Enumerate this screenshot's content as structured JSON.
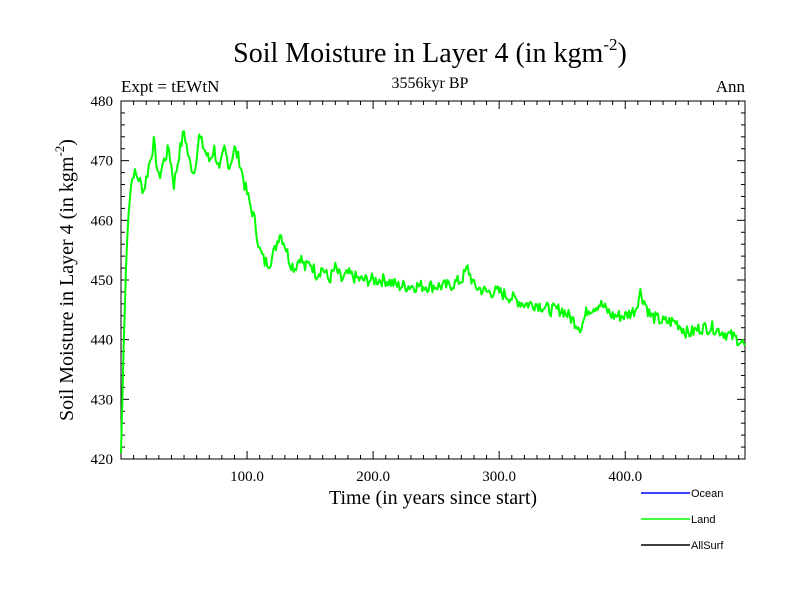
{
  "chart_data": {
    "type": "line",
    "title_main": "Soil Moisture in Layer 4 (in kgm",
    "title_sup": "-2",
    "title_close": ")",
    "subtitle": "3556kyr BP",
    "left_label": "Expt = tEWtN",
    "right_label": "Ann",
    "xlabel": "Time (in years since start)",
    "ylabel_main": "Soil Moisture in Layer 4 (in kgm",
    "ylabel_sup": "-2",
    "ylabel_close": ")",
    "xlim": [
      0,
      495
    ],
    "ylim": [
      420,
      480
    ],
    "x_ticks": [
      100,
      200,
      300,
      400
    ],
    "x_tick_labels": [
      "100.0",
      "200.0",
      "300.0",
      "400.0"
    ],
    "y_ticks": [
      420,
      430,
      440,
      450,
      460,
      470,
      480
    ],
    "y_tick_labels": [
      "420",
      "430",
      "440",
      "450",
      "460",
      "470",
      "480"
    ],
    "legend": [
      {
        "name": "Ocean",
        "color": "#0000ff"
      },
      {
        "name": "Land",
        "color": "#00ff00"
      },
      {
        "name": "AllSurf",
        "color": "#000000"
      }
    ],
    "series": [
      {
        "name": "Land",
        "color": "#00ff00",
        "anchors": [
          [
            0,
            421
          ],
          [
            2,
            438
          ],
          [
            4,
            452
          ],
          [
            6,
            462
          ],
          [
            8,
            466
          ],
          [
            10,
            468
          ],
          [
            14,
            467
          ],
          [
            18,
            465
          ],
          [
            22,
            469
          ],
          [
            26,
            473
          ],
          [
            30,
            467
          ],
          [
            34,
            470
          ],
          [
            38,
            472
          ],
          [
            42,
            466
          ],
          [
            46,
            471
          ],
          [
            50,
            475
          ],
          [
            54,
            470
          ],
          [
            58,
            468
          ],
          [
            62,
            474
          ],
          [
            66,
            472
          ],
          [
            70,
            470
          ],
          [
            74,
            472
          ],
          [
            78,
            468
          ],
          [
            82,
            472
          ],
          [
            86,
            469
          ],
          [
            90,
            472
          ],
          [
            94,
            470
          ],
          [
            98,
            466
          ],
          [
            102,
            463
          ],
          [
            106,
            460
          ],
          [
            110,
            455
          ],
          [
            114,
            453
          ],
          [
            118,
            453
          ],
          [
            122,
            455
          ],
          [
            126,
            458
          ],
          [
            130,
            456
          ],
          [
            134,
            453
          ],
          [
            138,
            452
          ],
          [
            142,
            454
          ],
          [
            146,
            452
          ],
          [
            150,
            453
          ],
          [
            155,
            451
          ],
          [
            160,
            452
          ],
          [
            165,
            450
          ],
          [
            170,
            452
          ],
          [
            175,
            450
          ],
          [
            180,
            451
          ],
          [
            190,
            450
          ],
          [
            200,
            450
          ],
          [
            210,
            450
          ],
          [
            220,
            449
          ],
          [
            230,
            449
          ],
          [
            240,
            449
          ],
          [
            250,
            449
          ],
          [
            260,
            449
          ],
          [
            270,
            450
          ],
          [
            275,
            452
          ],
          [
            280,
            449
          ],
          [
            290,
            448
          ],
          [
            300,
            448
          ],
          [
            310,
            447
          ],
          [
            320,
            446
          ],
          [
            330,
            446
          ],
          [
            340,
            445
          ],
          [
            350,
            445
          ],
          [
            360,
            443
          ],
          [
            365,
            442
          ],
          [
            370,
            445
          ],
          [
            380,
            446
          ],
          [
            390,
            444
          ],
          [
            400,
            444
          ],
          [
            408,
            445
          ],
          [
            412,
            448
          ],
          [
            416,
            446
          ],
          [
            420,
            444
          ],
          [
            430,
            443
          ],
          [
            440,
            443
          ],
          [
            450,
            441
          ],
          [
            460,
            442
          ],
          [
            470,
            442
          ],
          [
            480,
            441
          ],
          [
            490,
            440
          ],
          [
            495,
            439
          ]
        ]
      }
    ]
  }
}
